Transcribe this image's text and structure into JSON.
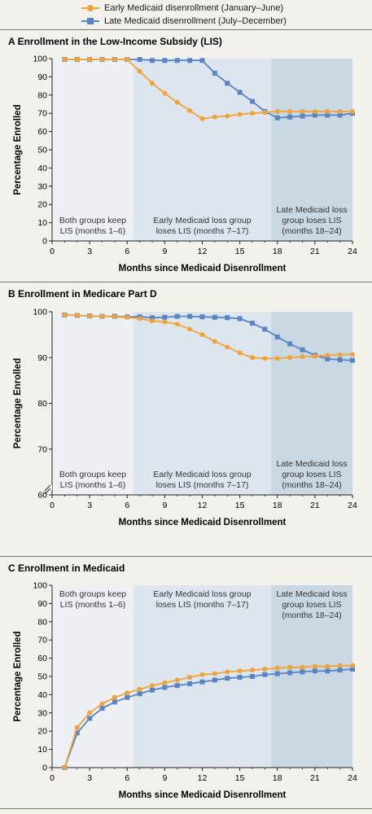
{
  "legend": [
    {
      "label": "Early Medicaid disenrollment (January–June)",
      "color": "#f0a33a",
      "marker": "circle"
    },
    {
      "label": "Late Medicaid disenrollment (July–December)",
      "color": "#5b84c4",
      "marker": "square"
    }
  ],
  "x_ticks": [
    0,
    3,
    6,
    9,
    12,
    15,
    18,
    21,
    24
  ],
  "xlabel": "Months since Medicaid Disenrollment",
  "ylabel": "Percentage Enrolled",
  "shading_colors": [
    "#edf1f5",
    "#dde6ee",
    "#c9d8e3"
  ],
  "chart_data": [
    {
      "type": "line",
      "panel_letter": "A",
      "title": "Enrollment in the Low-Income Subsidy (LIS)",
      "xlabel": "Months since Medicaid Disenrollment",
      "ylabel": "Percentage Enrolled",
      "xlim": [
        0,
        24
      ],
      "ylim": [
        0,
        100
      ],
      "y_ticks": [
        0,
        10,
        20,
        30,
        40,
        50,
        60,
        70,
        80,
        90,
        100
      ],
      "y_break": false,
      "shading_boundaries": [
        6.5,
        17.5
      ],
      "annotation_position": "bottom",
      "regions": [
        {
          "lines": [
            "Both groups keep",
            "LIS (months 1–6)"
          ]
        },
        {
          "lines": [
            "Early Medicaid loss group",
            "loses LIS (months 7–17)"
          ]
        },
        {
          "lines": [
            "Late Medicaid loss",
            "group loses LIS",
            "(months 18–24)"
          ]
        }
      ],
      "x": [
        1,
        2,
        3,
        4,
        5,
        6,
        7,
        8,
        9,
        10,
        11,
        12,
        13,
        14,
        15,
        16,
        17,
        18,
        19,
        20,
        21,
        22,
        23,
        24
      ],
      "series": [
        {
          "name": "Early Medicaid disenrollment (January–June)",
          "values": [
            99.5,
            99.5,
            99.5,
            99.5,
            99.5,
            99.5,
            93,
            86.5,
            81,
            76,
            71.5,
            67,
            68,
            68.5,
            69.5,
            70,
            70.5,
            71,
            71,
            71,
            71,
            71,
            71,
            71
          ]
        },
        {
          "name": "Late Medicaid disenrollment (July–December)",
          "values": [
            99.5,
            99.5,
            99.5,
            99.5,
            99.5,
            99.5,
            99.5,
            99,
            99,
            99,
            99,
            99,
            92,
            86.5,
            81.5,
            76.5,
            71,
            67.5,
            68,
            68.5,
            69,
            69,
            69,
            70
          ]
        }
      ]
    },
    {
      "type": "line",
      "panel_letter": "B",
      "title": "Enrollment in Medicare Part D",
      "xlabel": "Months since Medicaid Disenrollment",
      "ylabel": "Percentage Enrolled",
      "xlim": [
        0,
        24
      ],
      "ylim": [
        60,
        100
      ],
      "y_ticks": [
        60,
        70,
        80,
        90,
        100
      ],
      "y_break": true,
      "shading_boundaries": [
        6.5,
        17.5
      ],
      "annotation_position": "bottom",
      "regions": [
        {
          "lines": [
            "Both groups keep",
            "LIS (months 1–6)"
          ]
        },
        {
          "lines": [
            "Early Medicaid loss group",
            "loses LIS (months 7–17)"
          ]
        },
        {
          "lines": [
            "Late Medicaid loss",
            "group loses LIS",
            "(months 18–24)"
          ]
        }
      ],
      "x": [
        1,
        2,
        3,
        4,
        5,
        6,
        7,
        8,
        9,
        10,
        11,
        12,
        13,
        14,
        15,
        16,
        17,
        18,
        19,
        20,
        21,
        22,
        23,
        24
      ],
      "series": [
        {
          "name": "Early Medicaid disenrollment (January–June)",
          "values": [
            99.3,
            99.2,
            99.1,
            99,
            98.9,
            98.8,
            98.5,
            98,
            97.8,
            97.3,
            96.2,
            95,
            93.5,
            92.3,
            91,
            90,
            89.8,
            89.8,
            90,
            90.2,
            90.3,
            90.5,
            90.6,
            90.7
          ]
        },
        {
          "name": "Late Medicaid disenrollment (July–December)",
          "values": [
            99.3,
            99.2,
            99.1,
            99,
            99,
            98.9,
            98.9,
            98.7,
            98.8,
            99,
            99,
            98.9,
            98.8,
            98.7,
            98.5,
            97.5,
            96.2,
            94.5,
            93,
            91.7,
            90.5,
            89.7,
            89.5,
            89.4
          ]
        }
      ]
    },
    {
      "type": "line",
      "panel_letter": "C",
      "title": "Enrollment in Medicaid",
      "xlabel": "Months since Medicaid Disenrollment",
      "ylabel": "Percentage Enrolled",
      "xlim": [
        0,
        24
      ],
      "ylim": [
        0,
        100
      ],
      "y_ticks": [
        0,
        10,
        20,
        30,
        40,
        50,
        60,
        70,
        80,
        90,
        100
      ],
      "y_break": false,
      "shading_boundaries": [
        6.5,
        17.5
      ],
      "annotation_position": "top",
      "regions": [
        {
          "lines": [
            "Both groups keep",
            "LIS (months 1–6)"
          ]
        },
        {
          "lines": [
            "Early Medicaid loss group",
            "loses LIS (months 7–17)"
          ]
        },
        {
          "lines": [
            "Late Medicaid loss",
            "group loses LIS",
            "(months 18–24)"
          ]
        }
      ],
      "x": [
        1,
        2,
        3,
        4,
        5,
        6,
        7,
        8,
        9,
        10,
        11,
        12,
        13,
        14,
        15,
        16,
        17,
        18,
        19,
        20,
        21,
        22,
        23,
        24
      ],
      "series": [
        {
          "name": "Early Medicaid disenrollment (January–June)",
          "values": [
            0,
            22,
            30,
            35,
            38.5,
            41,
            43,
            45,
            46.5,
            48,
            49.5,
            51,
            51.5,
            52.5,
            53,
            53.5,
            54,
            54.5,
            55,
            55,
            55.5,
            55.5,
            56,
            56
          ]
        },
        {
          "name": "Late Medicaid disenrollment (July–December)",
          "values": [
            0,
            19,
            27,
            32.5,
            36,
            38.5,
            40.5,
            42.5,
            44,
            45,
            46,
            47,
            48,
            49,
            49.5,
            50,
            51,
            51.5,
            52,
            52.5,
            53,
            53,
            53.5,
            54
          ]
        }
      ]
    }
  ]
}
